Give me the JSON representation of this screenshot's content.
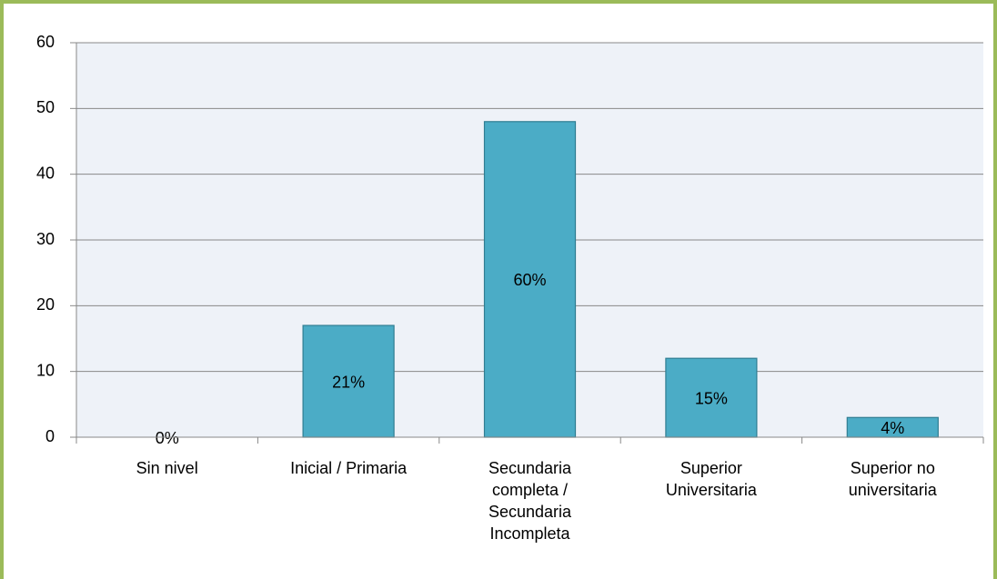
{
  "chart_data": {
    "type": "bar",
    "categories": [
      "Sin nivel",
      "Inicial / Primaria",
      "Secundaria completa / Secundaria Incompleta",
      "Superior Universitaria",
      "Superior no universitaria"
    ],
    "values": [
      0,
      17,
      48,
      12,
      3
    ],
    "percent_labels": [
      "0%",
      "21%",
      "60%",
      "15%",
      "4%"
    ],
    "color": "#4bacc6",
    "ylim": [
      0,
      60
    ],
    "yticks": [
      0,
      10,
      20,
      30,
      40,
      50,
      60
    ],
    "grid": true
  }
}
